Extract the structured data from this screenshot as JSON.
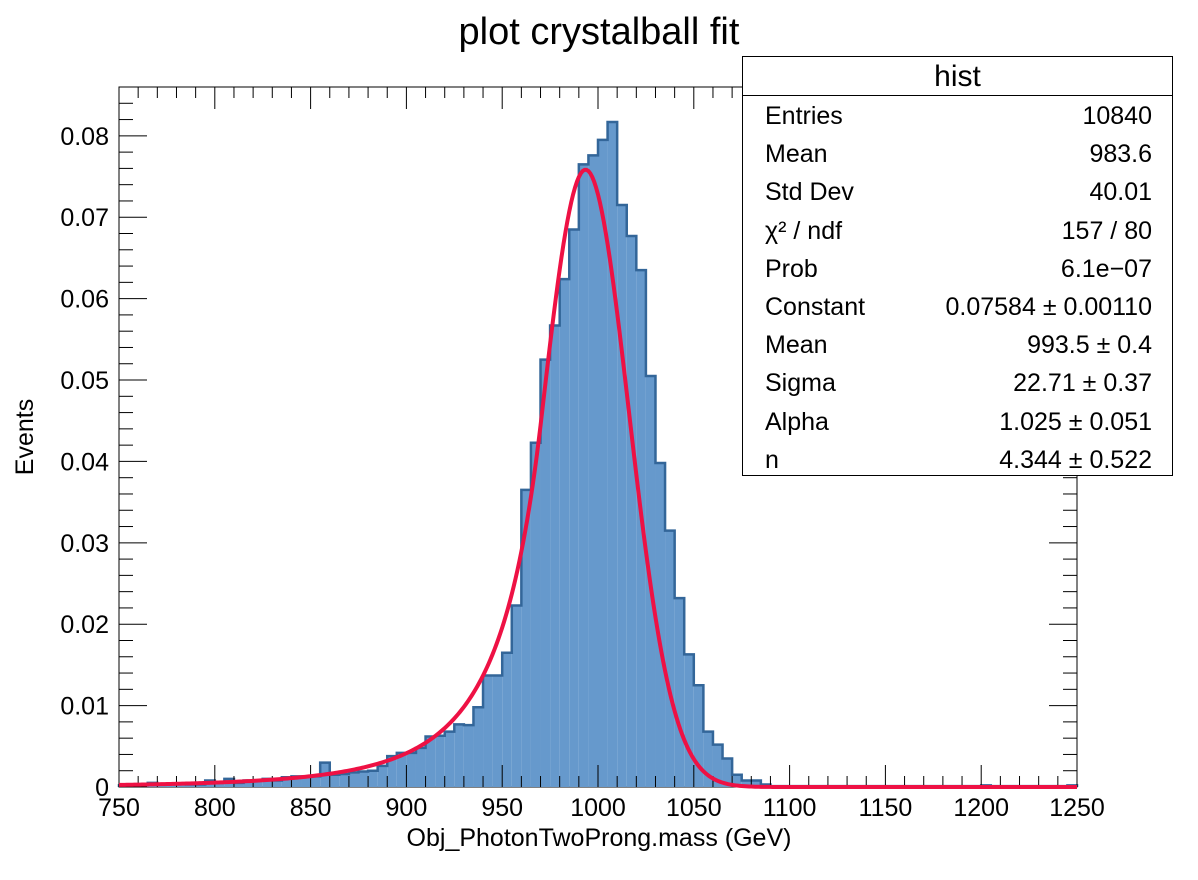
{
  "chart_data": {
    "type": "bar",
    "title": "plot crystalball fit",
    "xlabel": "Obj_PhotonTwoProng.mass (GeV)",
    "ylabel": "Events",
    "xlim": [
      750,
      1250
    ],
    "ylim": [
      0,
      0.086
    ],
    "bin_width": 5,
    "x_ticks": [
      "750",
      "800",
      "850",
      "900",
      "950",
      "1000",
      "1050",
      "1100",
      "1150",
      "1200",
      "1250"
    ],
    "y_ticks": [
      "0",
      "0.01",
      "0.02",
      "0.03",
      "0.04",
      "0.05",
      "0.06",
      "0.07",
      "0.08"
    ],
    "x_tick_values": [
      750,
      800,
      850,
      900,
      950,
      1000,
      1050,
      1100,
      1150,
      1200,
      1250
    ],
    "y_tick_values": [
      0,
      0.01,
      0.02,
      0.03,
      0.04,
      0.05,
      0.06,
      0.07,
      0.08
    ],
    "histogram": {
      "bin_low_edges": [
        750,
        755,
        760,
        765,
        770,
        775,
        780,
        785,
        790,
        795,
        800,
        805,
        810,
        815,
        820,
        825,
        830,
        835,
        840,
        845,
        850,
        855,
        860,
        865,
        870,
        875,
        880,
        885,
        890,
        895,
        900,
        905,
        910,
        915,
        920,
        925,
        930,
        935,
        940,
        945,
        950,
        955,
        960,
        965,
        970,
        975,
        980,
        985,
        990,
        995,
        1000,
        1005,
        1010,
        1015,
        1020,
        1025,
        1030,
        1035,
        1040,
        1045,
        1050,
        1055,
        1060,
        1065,
        1070,
        1075,
        1080,
        1085,
        1090,
        1095,
        1100,
        1105,
        1110,
        1115,
        1120,
        1125,
        1130,
        1135,
        1140,
        1145,
        1150,
        1155,
        1160,
        1165,
        1170,
        1175,
        1180,
        1185,
        1190,
        1195,
        1200,
        1205,
        1210,
        1215,
        1220,
        1225,
        1230,
        1235,
        1240,
        1245
      ],
      "values": [
        0.0002,
        0.0002,
        0.0002,
        0.0005,
        0.0004,
        0.0004,
        0.0004,
        0.0003,
        0.0003,
        0.0008,
        0.0006,
        0.001,
        0.0005,
        0.0008,
        0.0008,
        0.001,
        0.0008,
        0.0012,
        0.0013,
        0.0013,
        0.0013,
        0.003,
        0.0015,
        0.0016,
        0.0018,
        0.0019,
        0.002,
        0.0026,
        0.0038,
        0.0042,
        0.0042,
        0.0048,
        0.0062,
        0.0063,
        0.0068,
        0.0077,
        0.0076,
        0.0098,
        0.0137,
        0.0137,
        0.0165,
        0.0223,
        0.0365,
        0.0423,
        0.0525,
        0.0567,
        0.0624,
        0.0685,
        0.0765,
        0.0776,
        0.0795,
        0.0817,
        0.0715,
        0.0677,
        0.0635,
        0.0505,
        0.0398,
        0.0315,
        0.0232,
        0.0163,
        0.0125,
        0.0068,
        0.0052,
        0.0035,
        0.0015,
        0.0008,
        0.0008,
        0.0003,
        0.0001,
        0.0001,
        0.0001,
        0.0001,
        0.0001,
        0.0001,
        0.0001,
        0.0001,
        0.0001,
        0.0001,
        0.0001,
        0.0001,
        0.0001,
        0.0001,
        0.0001,
        0.0001,
        0.0001,
        0.0001,
        0.0001,
        0.0001,
        0.0001,
        0.0001,
        0.0002,
        0.0001,
        0.0001,
        0.0001,
        0.0001,
        0.0001,
        0.0001,
        0.0001,
        0.0001,
        0.0002
      ],
      "fill": "#6699cc",
      "line": "#336699"
    },
    "fit": {
      "name": "crystalball",
      "color": "#ee1144",
      "constant": 0.07584,
      "mean": 993.5,
      "sigma": 22.71,
      "alpha": 1.025,
      "n": 4.344
    }
  },
  "stats_box": {
    "title": "hist",
    "rows": [
      {
        "label": "Entries",
        "value": "10840"
      },
      {
        "label": "Mean",
        "value": "983.6"
      },
      {
        "label": "Std Dev",
        "value": "40.01"
      },
      {
        "label": "χ² / ndf",
        "value": "157 / 80"
      },
      {
        "label": "Prob",
        "value": "6.1e−07"
      },
      {
        "label": "Constant",
        "value": "0.07584 ± 0.00110"
      },
      {
        "label": "Mean",
        "value": "993.5 ± 0.4"
      },
      {
        "label": "Sigma",
        "value": "22.71 ± 0.37"
      },
      {
        "label": "Alpha",
        "value": "1.025 ± 0.051"
      },
      {
        "label": "n",
        "value": "4.344 ± 0.522"
      }
    ]
  }
}
